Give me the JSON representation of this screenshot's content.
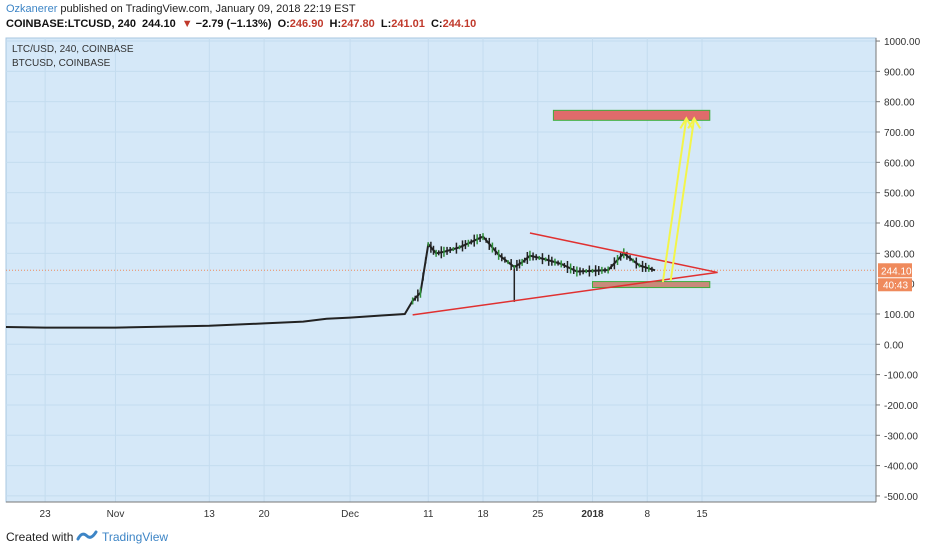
{
  "header": {
    "publisher": "Ozkanerer",
    "published_text": " published on TradingView.com, January 09, 2018 22:19 EST",
    "symbol": "COINBASE:LTCUSD, 240",
    "last": "244.10",
    "change": "−2.79 (−1.13%)",
    "open_label": "O:",
    "open": "246.90",
    "high_label": "H:",
    "high": "247.80",
    "low_label": "L:",
    "low": "241.01",
    "close_label": "C:",
    "close": "244.10",
    "down_arrow": "▼"
  },
  "legend": {
    "main": "LTC/USD, 240, COINBASE",
    "compare": "BTCUSD, COINBASE"
  },
  "footer": {
    "created_with": "Created with",
    "brand": "TradingView",
    "logo_icon": "tradingview-logo-icon"
  },
  "colors": {
    "background": "#d5e8f8",
    "grid": "#c4dcef",
    "trendline": "#e03030",
    "target_box": "#e06b6b",
    "target_box_border": "#3fae3f",
    "arrow": "#f3f54a",
    "price_label": "#ef8a5c"
  },
  "chart_data": {
    "type": "line",
    "series": [
      {
        "name": "LTC/USD, 240, COINBASE",
        "x": [
          "Oct 18",
          "Oct 23",
          "Nov 1",
          "Nov 13",
          "Nov 20",
          "Nov 25",
          "Nov 28",
          "Dec 1",
          "Dec 5",
          "Dec 8",
          "Dec 9",
          "Dec 10",
          "Dec 11",
          "Dec 12",
          "Dec 13",
          "Dec 15",
          "Dec 18",
          "Dec 20",
          "Dec 22",
          "Dec 23",
          "Dec 24",
          "Dec 26",
          "Dec 28",
          "Dec 30",
          "Jan 1",
          "Jan 3",
          "Jan 5",
          "Jan 7",
          "Jan 9"
        ],
        "values": [
          57,
          55,
          55,
          61,
          69,
          75,
          84,
          88,
          95,
          100,
          143,
          170,
          330,
          300,
          305,
          320,
          355,
          295,
          255,
          270,
          292,
          280,
          265,
          240,
          242,
          245,
          300,
          260,
          244
        ]
      }
    ],
    "x_ticks": [
      "23",
      "Nov",
      "13",
      "20",
      "Dec",
      "11",
      "18",
      "25",
      "2018",
      "8",
      "15"
    ],
    "y_ticks": [
      "1000.00",
      "900.00",
      "800.00",
      "700.00",
      "600.00",
      "500.00",
      "400.00",
      "300.00",
      "200.00",
      "100.00",
      "0.00",
      "-100.00",
      "-200.00",
      "-300.00",
      "-400.00",
      "-500.00"
    ],
    "ylim": [
      -520,
      1010
    ],
    "grid": true,
    "last_price": "244.10",
    "countdown": "40:43",
    "annotations": {
      "triangle_upper": [
        [
          "Dec 24",
          367
        ],
        [
          "Jan 17",
          237
        ]
      ],
      "triangle_lower": [
        [
          "Dec 9",
          97
        ],
        [
          "Jan 17",
          237
        ]
      ],
      "target_zone": [
        [
          "Dec 27",
          755
        ],
        [
          "Jan 16",
          755
        ]
      ],
      "support_zone": [
        [
          "Jan 1",
          197
        ],
        [
          "Jan 16",
          197
        ]
      ],
      "arrows": [
        [
          [
            "Jan 10",
            205
          ],
          [
            "Jan 13",
            745
          ]
        ],
        [
          [
            "Jan 11",
            210
          ],
          [
            "Jan 14",
            745
          ]
        ]
      ]
    }
  }
}
